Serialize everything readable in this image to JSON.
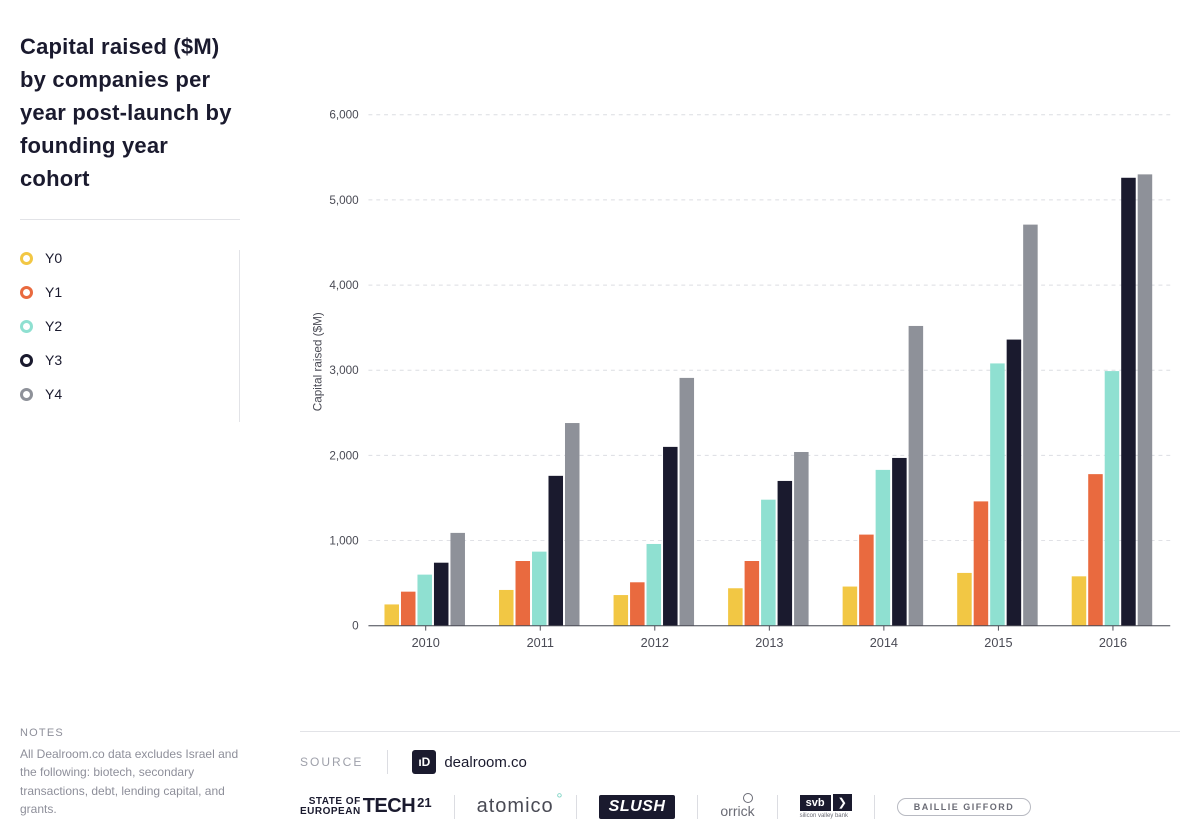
{
  "title": "Capital raised ($M) by companies per year post-launch by founding year cohort",
  "notes": {
    "heading": "NOTES",
    "body": "All Dealroom.co data excludes Israel and the following: biotech, secondary transactions, debt, lending capital, and grants."
  },
  "chart": {
    "type": "grouped-bar",
    "ylabel": "Capital raised ($M)",
    "ylim": [
      0,
      6200
    ],
    "ytick_step": 1000,
    "ytick_max": 6000,
    "categories": [
      "2010",
      "2011",
      "2012",
      "2013",
      "2014",
      "2015",
      "2016"
    ],
    "series": [
      {
        "name": "Y0",
        "color": "#f2c744",
        "values": [
          250,
          420,
          360,
          440,
          460,
          620,
          580
        ]
      },
      {
        "name": "Y1",
        "color": "#e96a3f",
        "values": [
          400,
          760,
          510,
          760,
          1070,
          1460,
          1780
        ]
      },
      {
        "name": "Y2",
        "color": "#8fe0d1",
        "values": [
          600,
          870,
          960,
          1480,
          1830,
          3080,
          2990
        ]
      },
      {
        "name": "Y3",
        "color": "#1a1a2e",
        "values": [
          740,
          1760,
          2100,
          1700,
          1970,
          3360,
          5260
        ]
      },
      {
        "name": "Y4",
        "color": "#8e9199",
        "values": [
          1090,
          2380,
          2910,
          2040,
          3520,
          4710,
          5300
        ]
      }
    ],
    "grid_color": "#dcdde2",
    "axis_color": "#4a4b55",
    "background_color": "#ffffff"
  },
  "source": {
    "label": "SOURCE",
    "primary": "dealroom.co"
  },
  "sponsors": {
    "soet_small_top": "STATE OF",
    "soet_small_bottom": "EUROPEAN",
    "soet_big": "TECH",
    "soet_year": "21",
    "atomico": "atomico",
    "slush": "SLUSH",
    "orrick": "orrick",
    "svb": "svb",
    "baillie": "BAILLIE GIFFORD"
  }
}
